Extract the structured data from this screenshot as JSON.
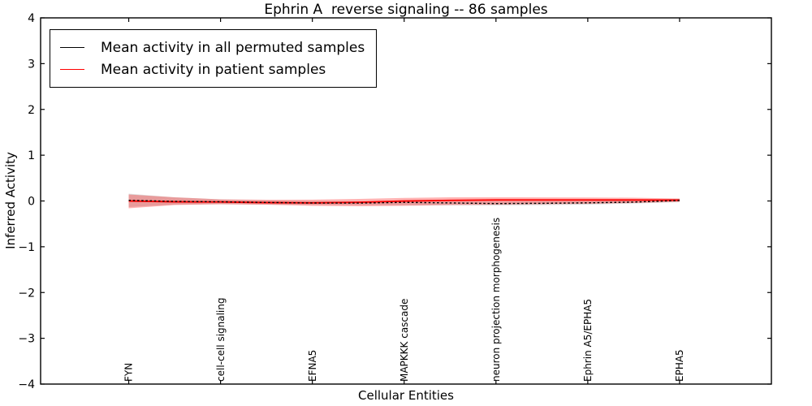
{
  "figure": {
    "title": "Ephrin A  reverse signaling -- 86 samples"
  },
  "chart_data": {
    "type": "line",
    "title": "Ephrin A  reverse signaling -- 86 samples",
    "xlabel": "Cellular Entities",
    "ylabel": "Inferred Activity",
    "ylim": [
      -4,
      4
    ],
    "xlim": [
      -0.96,
      7.0
    ],
    "yticks": [
      -4,
      -3,
      -2,
      -1,
      0,
      1,
      2,
      3,
      4
    ],
    "ytick_labels": [
      "−4",
      "−3",
      "−2",
      "−1",
      "0",
      "1",
      "2",
      "3",
      "4"
    ],
    "grid": false,
    "categories": [
      "FYN",
      "cell-cell signaling",
      "EFNA5",
      "MAPKKK cascade",
      "neuron projection morphogenesis",
      "Ephrin A5/EPHA5",
      "EPHA5"
    ],
    "x": [
      0,
      0.5,
      1,
      1.5,
      2,
      2.5,
      3,
      3.5,
      4,
      4.5,
      5,
      5.5,
      6
    ],
    "series": [
      {
        "name": "Mean activity in all permuted samples",
        "color": "#000000",
        "line_style": "dashed",
        "values": [
          0.015,
          -0.008,
          -0.018,
          -0.032,
          -0.044,
          -0.046,
          -0.03,
          -0.042,
          -0.057,
          -0.051,
          -0.041,
          -0.024,
          0.012
        ]
      },
      {
        "name": "Mean activity in patient samples",
        "color": "#ff0000",
        "line_style": "solid",
        "values": [
          0.0,
          -0.018,
          -0.021,
          -0.035,
          -0.041,
          -0.03,
          -0.002,
          0.012,
          0.021,
          0.021,
          0.021,
          0.022,
          0.018
        ]
      }
    ],
    "bands": [
      {
        "name": "permuted-samples-spread-band",
        "color": "#000000",
        "opacity": 0.13,
        "upper": [
          0.16,
          0.08,
          0.035,
          0.015,
          0.0,
          -0.005,
          -0.009,
          -0.012,
          -0.014,
          -0.008,
          -0.002,
          0.02,
          0.048
        ],
        "lower": [
          -0.133,
          -0.08,
          -0.071,
          -0.078,
          -0.085,
          -0.088,
          -0.09,
          -0.094,
          -0.098,
          -0.09,
          -0.08,
          -0.055,
          -0.027
        ]
      },
      {
        "name": "patient-samples-spread-band",
        "color": "#ff0000",
        "opacity": 0.3,
        "upper": [
          0.142,
          0.08,
          0.035,
          0.026,
          0.028,
          0.044,
          0.066,
          0.08,
          0.08,
          0.078,
          0.075,
          0.071,
          0.053
        ],
        "lower": [
          -0.16,
          -0.089,
          -0.071,
          -0.082,
          -0.106,
          -0.115,
          -0.106,
          -0.089,
          -0.08,
          -0.071,
          -0.062,
          -0.044,
          -0.018
        ]
      }
    ],
    "legend": {
      "position": "upper-left",
      "entries": [
        {
          "label": "Mean activity in all permuted samples",
          "color": "#000000",
          "style": "solid"
        },
        {
          "label": "Mean activity in patient samples",
          "color": "#ff0000",
          "style": "solid"
        }
      ]
    }
  }
}
